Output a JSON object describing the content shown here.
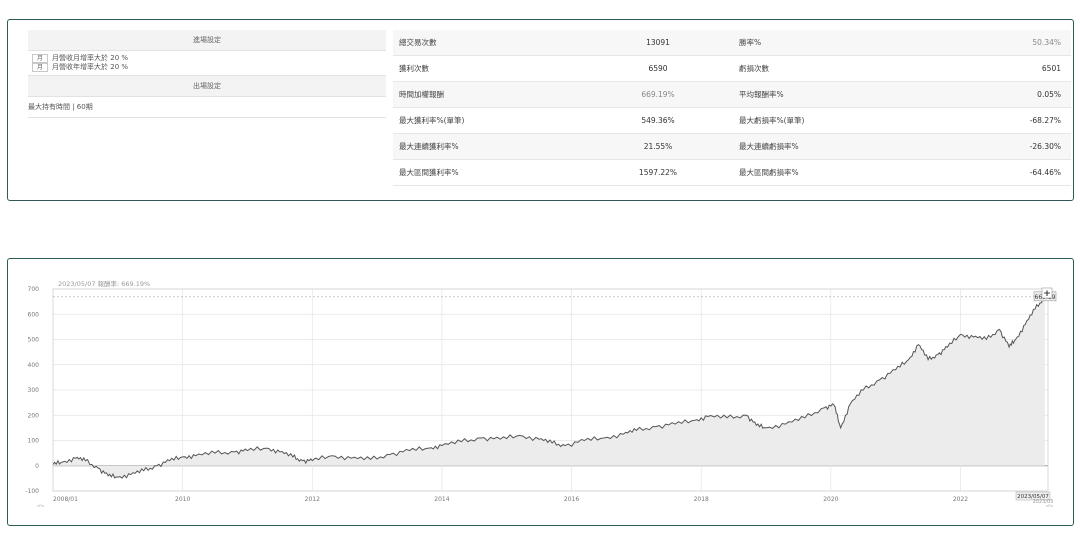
{
  "settings": {
    "entry_header": "進場設定",
    "conditions": [
      {
        "tag": "月",
        "text": "月營收月增率大於 20 %"
      },
      {
        "tag": "月",
        "text": "月營收年增率大於 20 %"
      }
    ],
    "exit_header": "出場設定",
    "max_hold": "最大持有時間 | 60期"
  },
  "stats": [
    {
      "label1": "總交易次數",
      "value1": "13091",
      "label2": "勝率%",
      "value2": "50.34%"
    },
    {
      "label1": "獲利次數",
      "value1": "6590",
      "label2": "虧損次數",
      "value2": "6501"
    },
    {
      "label1": "時間加權報酬",
      "value1": "669.19%",
      "label2": "平均報酬率%",
      "value2": "0.05%"
    },
    {
      "label1": "最大獲利率%(單筆)",
      "value1": "549.36%",
      "label2": "最大虧損率%(單筆)",
      "value2": "-68.27%"
    },
    {
      "label1": "最大連續獲利率%",
      "value1": "21.55%",
      "label2": "最大連續虧損率%",
      "value2": "-26.30%"
    },
    {
      "label1": "最大區間獲利率%",
      "value1": "1597.22%",
      "label2": "最大區間虧損率%",
      "value2": "-64.46%"
    }
  ],
  "chart": {
    "tooltip": "2023/05/07  報酬率: 669.19%",
    "plus_button": "+",
    "end_label": "669.19",
    "end_date_label": "2023/05/07",
    "end_date_label2": "2023/05",
    "axis_note": "xFin",
    "colors": {
      "line": "#555555",
      "fill": "#ececec",
      "grid": "#e4e4e4",
      "border": "#2f5b56"
    }
  },
  "chart_data": {
    "type": "area",
    "title": "",
    "xlabel": "",
    "ylabel": "",
    "xlim": [
      2008.0,
      2023.35
    ],
    "ylim": [
      -100,
      700
    ],
    "y_ticks": [
      700,
      600,
      500,
      400,
      300,
      200,
      100,
      0,
      -100
    ],
    "x_ticks": [
      {
        "value": 2008.0,
        "label": "2008/01"
      },
      {
        "value": 2010.0,
        "label": "2010"
      },
      {
        "value": 2012.0,
        "label": "2012"
      },
      {
        "value": 2014.0,
        "label": "2014"
      },
      {
        "value": 2016.0,
        "label": "2016"
      },
      {
        "value": 2018.0,
        "label": "2018"
      },
      {
        "value": 2020.0,
        "label": "2020"
      },
      {
        "value": 2022.0,
        "label": "2022"
      }
    ],
    "series": [
      {
        "x": [
          2008.0,
          2008.15,
          2008.35,
          2008.5,
          2008.7,
          2008.85,
          2009.0,
          2009.2,
          2009.4,
          2009.6,
          2009.8,
          2010.0,
          2010.2,
          2010.5,
          2010.8,
          2011.0,
          2011.3,
          2011.5,
          2011.7,
          2011.85,
          2012.0,
          2012.3,
          2012.6,
          2012.9,
          2013.2,
          2013.5,
          2013.8,
          2014.0,
          2014.3,
          2014.6,
          2014.9,
          2015.2,
          2015.5,
          2015.7,
          2015.9,
          2016.2,
          2016.5,
          2016.8,
          2017.0,
          2017.3,
          2017.6,
          2017.9,
          2018.1,
          2018.4,
          2018.7,
          2018.85,
          2019.0,
          2019.3,
          2019.6,
          2019.9,
          2020.05,
          2020.15,
          2020.3,
          2020.5,
          2020.75,
          2021.0,
          2021.2,
          2021.35,
          2021.5,
          2021.65,
          2021.8,
          2022.0,
          2022.2,
          2022.4,
          2022.6,
          2022.75,
          2022.85,
          2023.0,
          2023.15,
          2023.3
        ],
        "y": [
          5,
          15,
          30,
          20,
          -10,
          -40,
          -45,
          -35,
          -20,
          0,
          20,
          35,
          40,
          50,
          55,
          60,
          70,
          55,
          35,
          20,
          20,
          40,
          30,
          25,
          45,
          60,
          70,
          80,
          95,
          110,
          105,
          120,
          105,
          90,
          80,
          100,
          110,
          125,
          140,
          155,
          165,
          180,
          195,
          190,
          200,
          160,
          150,
          165,
          190,
          230,
          240,
          150,
          245,
          300,
          340,
          380,
          420,
          480,
          420,
          440,
          470,
          520,
          510,
          500,
          540,
          470,
          500,
          560,
          620,
          669
        ]
      }
    ]
  }
}
